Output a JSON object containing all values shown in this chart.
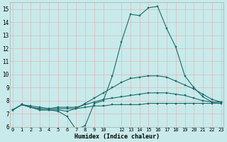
{
  "xlabel": "Humidex (Indice chaleur)",
  "bg_color": "#c8eaea",
  "grid_color": "#e0b8b8",
  "line_color": "#1a6b6b",
  "xlim": [
    -0.3,
    23.3
  ],
  "ylim": [
    6,
    15.5
  ],
  "xticks": [
    0,
    1,
    2,
    3,
    4,
    5,
    6,
    7,
    8,
    9,
    10,
    12,
    13,
    14,
    15,
    16,
    17,
    18,
    19,
    20,
    21,
    22,
    23
  ],
  "yticks": [
    6,
    7,
    8,
    9,
    10,
    11,
    12,
    13,
    14,
    15
  ],
  "x_vals": [
    0,
    1,
    2,
    3,
    4,
    5,
    6,
    7,
    8,
    9,
    10,
    11,
    12,
    13,
    14,
    15,
    16,
    17,
    18,
    19,
    20,
    21,
    22,
    23
  ],
  "line1": [
    7.3,
    7.7,
    7.5,
    7.3,
    7.3,
    7.2,
    6.8,
    5.8,
    6.1,
    7.8,
    8.0,
    9.9,
    12.5,
    14.6,
    14.5,
    15.1,
    15.2,
    13.5,
    12.1,
    9.9,
    9.0,
    8.3,
    7.9,
    7.9
  ],
  "line2": [
    7.3,
    7.7,
    7.5,
    7.3,
    7.3,
    7.3,
    7.2,
    7.4,
    7.8,
    8.2,
    8.6,
    9.0,
    9.4,
    9.7,
    9.8,
    9.9,
    9.9,
    9.8,
    9.5,
    9.2,
    8.9,
    8.5,
    8.1,
    7.9
  ],
  "line3": [
    7.3,
    7.7,
    7.6,
    7.5,
    7.4,
    7.5,
    7.5,
    7.5,
    7.7,
    7.9,
    8.1,
    8.2,
    8.3,
    8.4,
    8.5,
    8.6,
    8.6,
    8.6,
    8.5,
    8.4,
    8.2,
    8.0,
    7.9,
    7.9
  ],
  "line4": [
    7.3,
    7.7,
    7.5,
    7.4,
    7.4,
    7.4,
    7.4,
    7.4,
    7.5,
    7.6,
    7.6,
    7.7,
    7.7,
    7.7,
    7.7,
    7.8,
    7.8,
    7.8,
    7.8,
    7.8,
    7.8,
    7.8,
    7.8,
    7.8
  ]
}
